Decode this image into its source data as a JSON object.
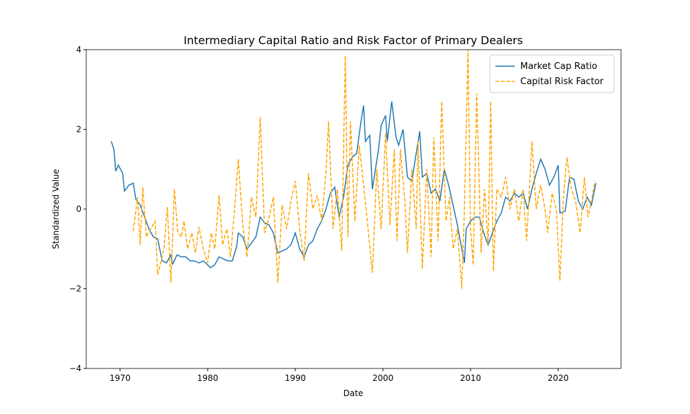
{
  "chart_data": {
    "type": "line",
    "title": "Intermediary Capital Ratio and Risk Factor of Primary Dealers",
    "xlabel": "Date",
    "ylabel": "Standardized Value",
    "xlim": [
      1966.14,
      2027.17
    ],
    "ylim": [
      -4,
      4
    ],
    "xticks": [
      1970,
      1980,
      1990,
      2000,
      2010,
      2020
    ],
    "yticks": [
      {
        "value": -4,
        "label": "−4"
      },
      {
        "value": -2,
        "label": "−2"
      },
      0,
      2,
      4
    ],
    "grid": false,
    "legend": "upper right",
    "series": [
      {
        "name": "Market Cap Ratio",
        "color": "#1f77b4",
        "dash": false,
        "x": [
          1969.0,
          1969.3,
          1969.5,
          1969.8,
          1970.3,
          1970.5,
          1971.0,
          1971.5,
          1971.8,
          1972.3,
          1972.8,
          1973.3,
          1973.8,
          1974.3,
          1974.8,
          1975.3,
          1975.8,
          1976.0,
          1976.5,
          1977.0,
          1977.5,
          1978.0,
          1978.5,
          1979.0,
          1979.5,
          1980.0,
          1980.3,
          1980.8,
          1981.3,
          1981.8,
          1982.3,
          1982.8,
          1983.3,
          1983.5,
          1984.0,
          1984.5,
          1985.0,
          1985.5,
          1986.0,
          1986.5,
          1987.0,
          1987.5,
          1988.0,
          1988.5,
          1989.0,
          1989.5,
          1990.0,
          1990.5,
          1991.0,
          1991.5,
          1992.0,
          1992.5,
          1993.0,
          1993.5,
          1994.0,
          1994.5,
          1995.0,
          1995.5,
          1996.0,
          1996.5,
          1997.0,
          1997.5,
          1997.8,
          1998.0,
          1998.5,
          1998.8,
          1999.5,
          1999.8,
          2000.3,
          2000.5,
          2001.0,
          2001.5,
          2001.8,
          2002.3,
          2002.8,
          2003.3,
          2003.8,
          2004.2,
          2004.5,
          2005.0,
          2005.5,
          2006.0,
          2006.5,
          2007.0,
          2007.5,
          2008.0,
          2008.5,
          2009.0,
          2009.3,
          2009.5,
          2010.0,
          2010.5,
          2011.0,
          2011.5,
          2012.0,
          2012.5,
          2013.0,
          2013.5,
          2014.0,
          2014.5,
          2015.0,
          2015.5,
          2016.0,
          2016.5,
          2017.0,
          2017.5,
          2018.0,
          2018.5,
          2019.0,
          2019.5,
          2020.0,
          2020.2,
          2020.8,
          2021.3,
          2021.8,
          2022.3,
          2022.8,
          2023.3,
          2023.8,
          2024.3
        ],
        "values": [
          1.7,
          1.5,
          0.95,
          1.1,
          0.9,
          0.45,
          0.6,
          0.65,
          0.25,
          0.1,
          -0.2,
          -0.5,
          -0.7,
          -0.75,
          -1.3,
          -1.35,
          -1.15,
          -1.38,
          -1.15,
          -1.2,
          -1.2,
          -1.3,
          -1.3,
          -1.35,
          -1.3,
          -1.4,
          -1.47,
          -1.4,
          -1.2,
          -1.25,
          -1.3,
          -1.3,
          -0.95,
          -0.6,
          -0.7,
          -1.0,
          -0.85,
          -0.7,
          -0.2,
          -0.35,
          -0.4,
          -0.6,
          -1.1,
          -1.05,
          -1.0,
          -0.9,
          -0.6,
          -1.0,
          -1.2,
          -0.9,
          -0.8,
          -0.5,
          -0.3,
          0.0,
          0.4,
          0.55,
          -0.2,
          0.3,
          1.1,
          1.3,
          1.4,
          2.2,
          2.6,
          1.7,
          1.85,
          0.5,
          1.5,
          2.1,
          2.35,
          1.7,
          2.7,
          1.8,
          1.6,
          2.0,
          0.8,
          0.7,
          1.4,
          1.95,
          0.8,
          0.9,
          0.4,
          0.5,
          0.2,
          1.0,
          0.6,
          0.1,
          -0.4,
          -1.0,
          -1.35,
          -0.5,
          -0.3,
          -0.2,
          -0.2,
          -0.6,
          -0.9,
          -0.6,
          -0.3,
          -0.1,
          0.3,
          0.2,
          0.4,
          0.3,
          0.4,
          0.0,
          0.5,
          0.9,
          1.25,
          1.0,
          0.6,
          0.8,
          1.1,
          -0.1,
          -0.05,
          0.8,
          0.75,
          0.2,
          0.0,
          0.3,
          0.1,
          0.65
        ]
      },
      {
        "name": "Capital Risk Factor",
        "color": "#ffa500",
        "dash": true,
        "x": [
          1971.5,
          1972.0,
          1972.3,
          1972.6,
          1973.0,
          1973.5,
          1974.0,
          1974.3,
          1975.0,
          1975.4,
          1975.8,
          1976.2,
          1976.6,
          1977.0,
          1977.3,
          1977.7,
          1978.2,
          1978.6,
          1979.0,
          1979.5,
          1980.0,
          1980.4,
          1980.8,
          1981.3,
          1981.7,
          1982.2,
          1982.6,
          1983.0,
          1983.5,
          1984.0,
          1984.5,
          1985.0,
          1985.5,
          1986.0,
          1986.5,
          1987.0,
          1987.5,
          1988.0,
          1988.5,
          1989.0,
          1989.5,
          1990.0,
          1990.5,
          1991.0,
          1991.5,
          1992.0,
          1992.5,
          1993.0,
          1993.5,
          1993.8,
          1994.3,
          1994.8,
          1995.3,
          1995.7,
          1996.0,
          1996.3,
          1996.8,
          1997.3,
          1997.8,
          1998.3,
          1998.8,
          1999.3,
          1999.8,
          2000.3,
          2000.8,
          2001.3,
          2001.6,
          2002.0,
          2002.5,
          2002.8,
          2003.3,
          2003.8,
          2004.0,
          2004.5,
          2005.0,
          2005.5,
          2005.8,
          2006.3,
          2006.7,
          2007.2,
          2007.6,
          2008.0,
          2008.5,
          2009.0,
          2009.3,
          2009.7,
          2010.0,
          2010.3,
          2010.7,
          2011.2,
          2011.6,
          2012.0,
          2012.3,
          2012.6,
          2013.0,
          2013.5,
          2014.0,
          2014.5,
          2015.0,
          2015.5,
          2016.0,
          2016.4,
          2017.0,
          2017.5,
          2018.0,
          2018.5,
          2018.8,
          2019.3,
          2019.8,
          2020.2,
          2020.6,
          2021.0,
          2021.5,
          2022.0,
          2022.5,
          2023.0,
          2023.4,
          2023.8,
          2024.2
        ],
        "values": [
          -0.55,
          0.3,
          -0.9,
          0.55,
          -0.7,
          -0.5,
          -0.3,
          -1.65,
          -1.0,
          0.05,
          -1.85,
          0.5,
          -0.6,
          -0.7,
          -0.3,
          -1.0,
          -0.6,
          -1.1,
          -0.45,
          -1.0,
          -1.35,
          -0.6,
          -1.0,
          0.35,
          -0.9,
          -0.5,
          -1.2,
          -0.2,
          1.25,
          -0.4,
          -1.2,
          0.3,
          -0.2,
          2.3,
          -0.6,
          -0.2,
          0.3,
          -1.85,
          0.1,
          -0.5,
          0.2,
          0.7,
          -0.5,
          -1.3,
          0.9,
          0.0,
          0.35,
          -0.3,
          0.9,
          2.2,
          -0.5,
          0.5,
          -1.05,
          3.85,
          -0.7,
          2.2,
          -0.3,
          1.6,
          0.6,
          -0.5,
          -1.6,
          1.0,
          -0.5,
          1.9,
          -0.4,
          1.5,
          -0.8,
          1.5,
          0.2,
          -1.1,
          1.0,
          -0.5,
          1.7,
          -1.5,
          1.0,
          -1.2,
          1.8,
          -0.8,
          2.7,
          -0.3,
          0.3,
          -1.0,
          -0.5,
          -2.0,
          0.0,
          4.0,
          -0.5,
          -1.4,
          2.9,
          -1.1,
          0.5,
          -0.9,
          2.7,
          -1.55,
          0.5,
          0.3,
          0.8,
          0.0,
          0.5,
          -0.3,
          0.5,
          -0.8,
          1.7,
          0.0,
          0.6,
          0.0,
          -0.6,
          0.4,
          0.0,
          -1.8,
          0.3,
          1.3,
          0.5,
          0.2,
          -0.6,
          0.8,
          -0.2,
          0.2,
          0.7
        ]
      }
    ]
  }
}
